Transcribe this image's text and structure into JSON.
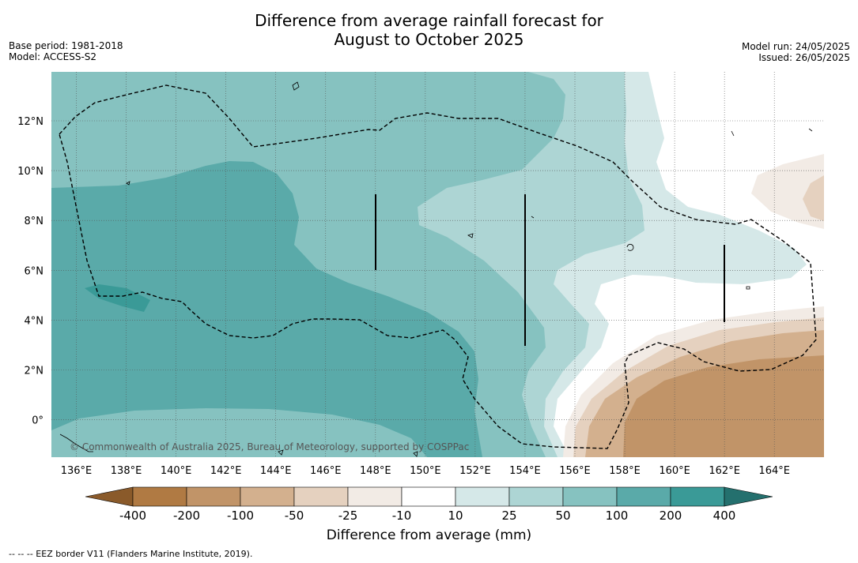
{
  "title_line1": "Difference from average rainfall forecast for",
  "title_line2": "August to October 2025",
  "meta_left": [
    "Base period: 1981-2018",
    "Model: ACCESS-S2"
  ],
  "meta_right": [
    "Model run: 24/05/2025",
    "Issued: 26/05/2025"
  ],
  "lon_labels": [
    "136°E",
    "138°E",
    "140°E",
    "142°E",
    "144°E",
    "146°E",
    "148°E",
    "150°E",
    "152°E",
    "154°E",
    "156°E",
    "158°E",
    "160°E",
    "162°E",
    "164°E"
  ],
  "lat_labels": [
    "12°N",
    "10°N",
    "8°N",
    "6°N",
    "4°N",
    "2°N",
    "0°"
  ],
  "copyright": "© Commonwealth of Australia 2025, Bureau of Meteorology, supported by COSPPac",
  "colorbar": {
    "ticks": [
      "-400",
      "-200",
      "-100",
      "-50",
      "-25",
      "-10",
      "10",
      "25",
      "50",
      "100",
      "200",
      "400"
    ],
    "title": "Difference from average (mm)"
  },
  "footnote": "--  --  -- EEZ border V11 (Flanders Marine Institute, 2019).",
  "colors": {
    "c400n": "#8a5a2a",
    "c200n": "#b07a43",
    "c100n": "#c19468",
    "c50n": "#d3b08e",
    "c25n": "#e5d1bf",
    "c10n": "#f2ebe5",
    "c0": "#ffffff",
    "c10": "#d5e8e8",
    "c25": "#add5d4",
    "c50": "#86c2c0",
    "c100": "#5aaaa9",
    "c200": "#3a9a97",
    "c400": "#24706e"
  }
}
